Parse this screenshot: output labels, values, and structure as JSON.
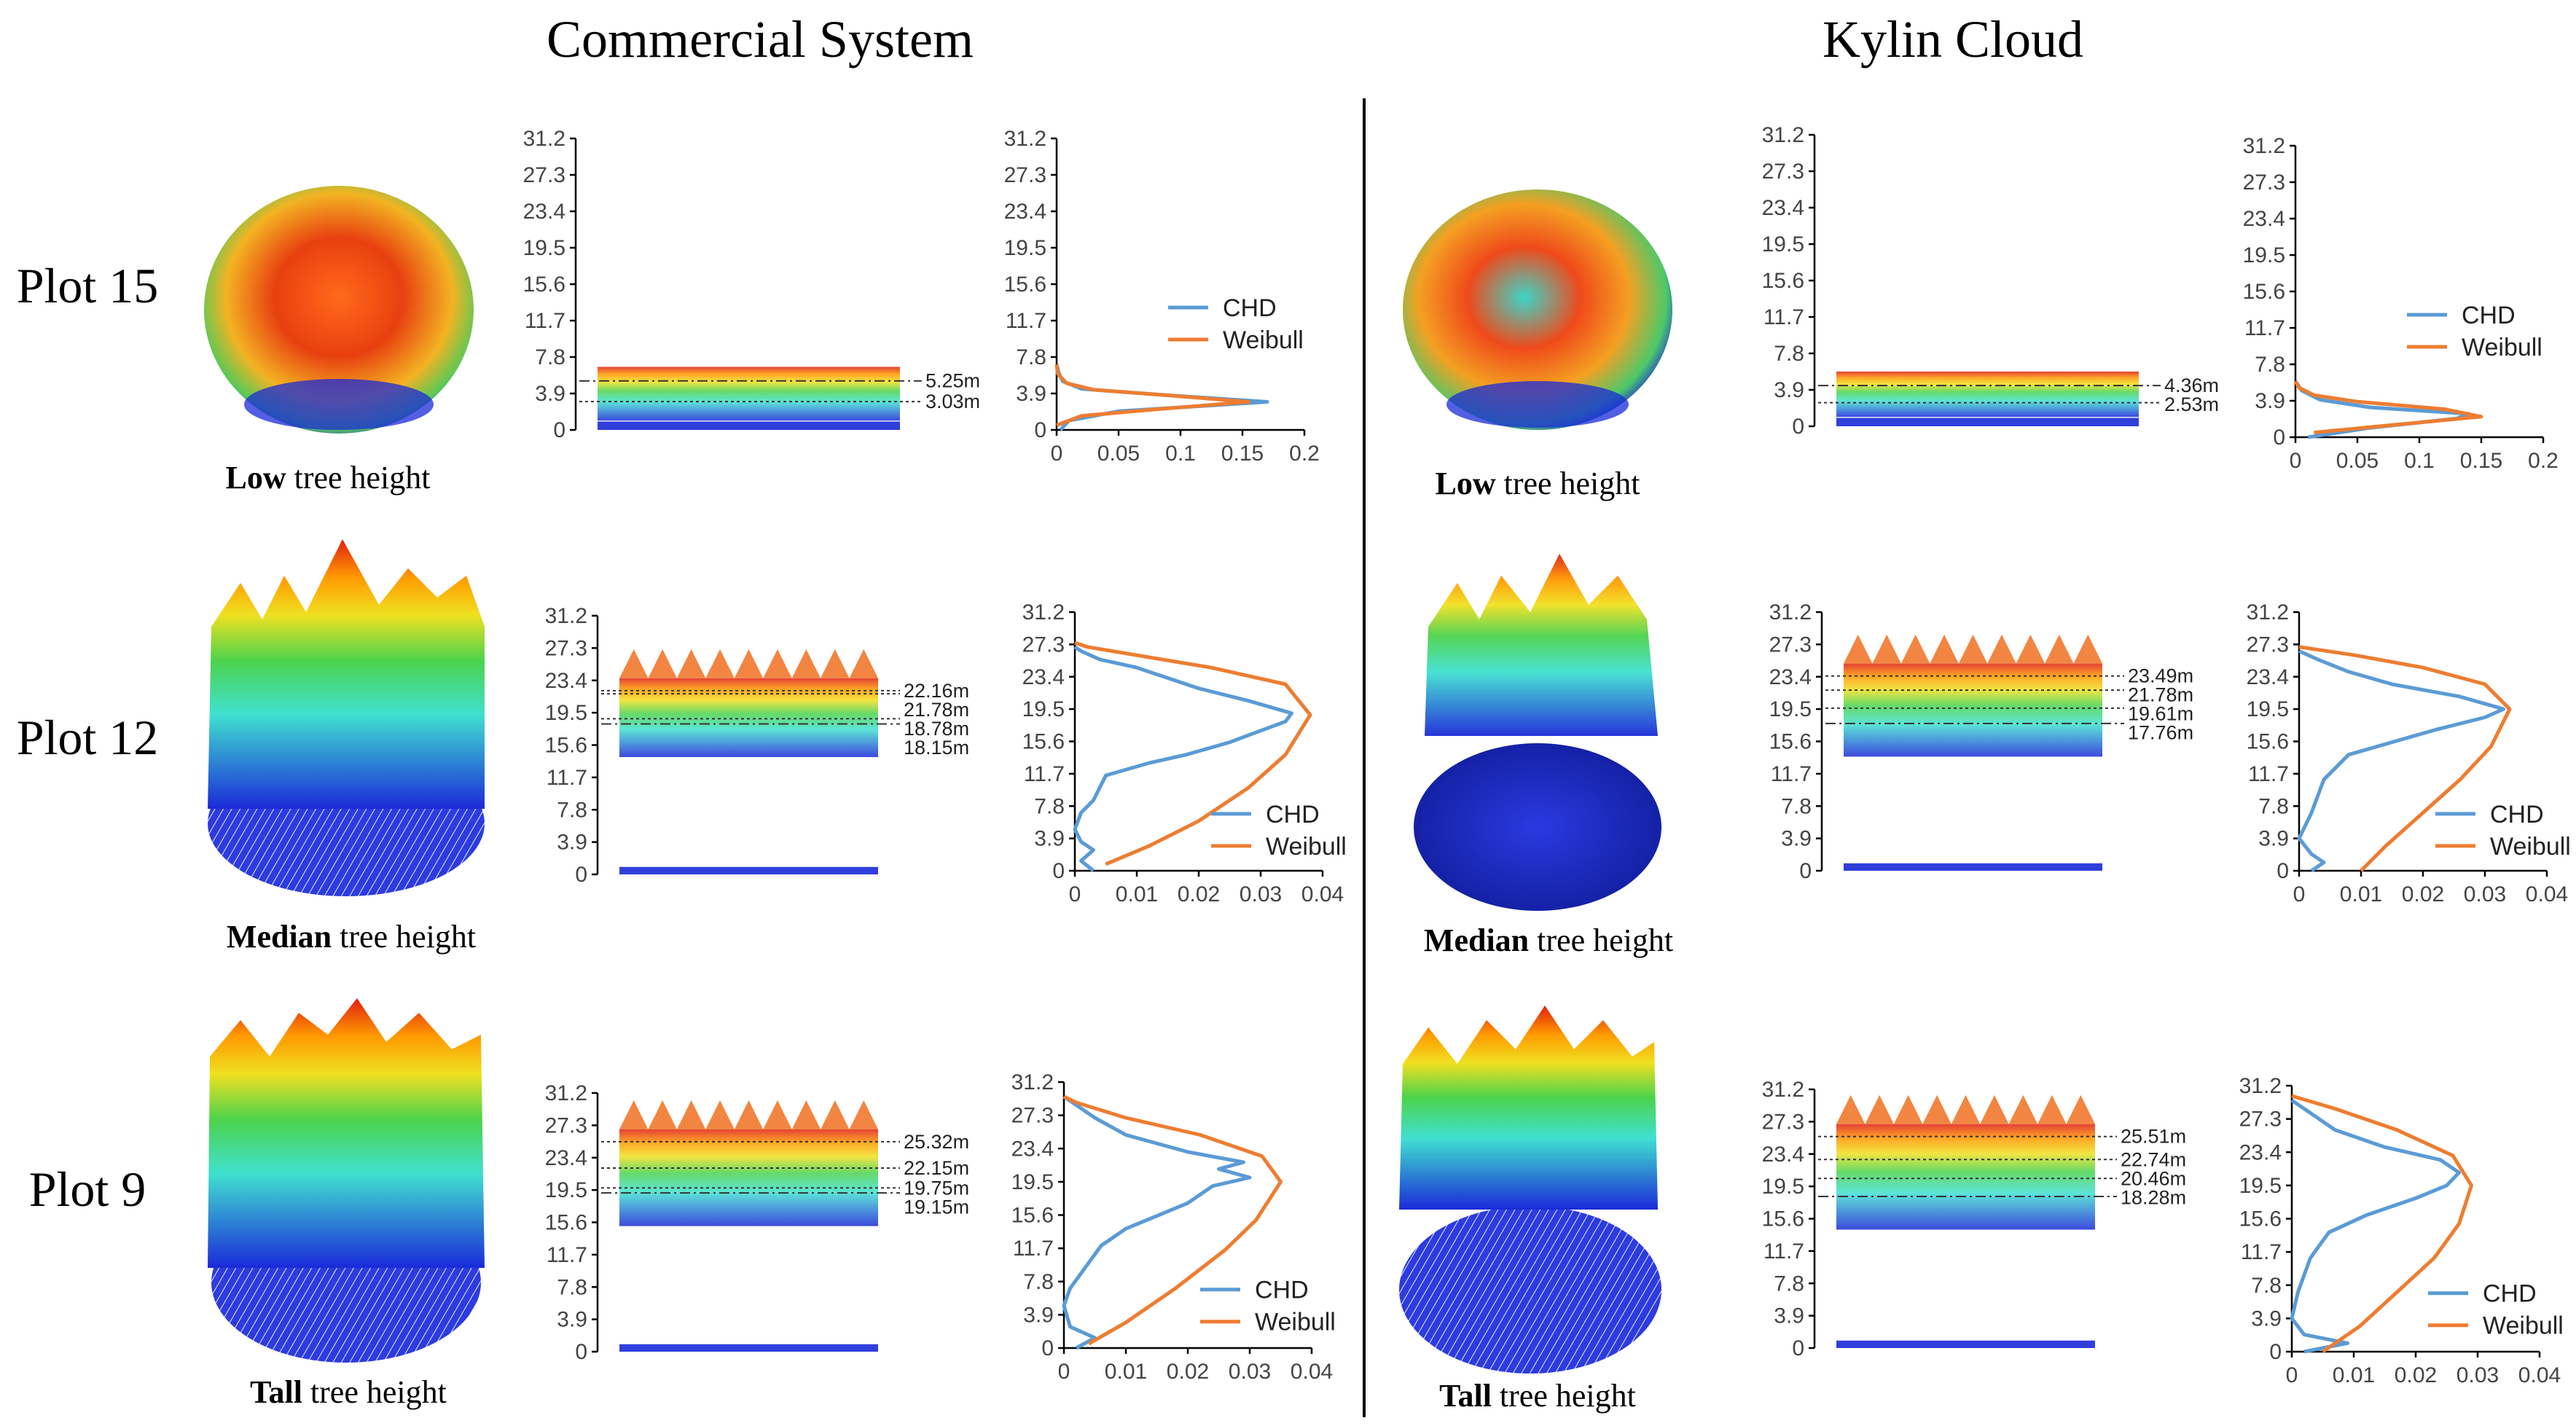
{
  "titles": {
    "left": "Commercial System",
    "right": "Kylin Cloud"
  },
  "plots": [
    {
      "label": "Plot 15",
      "class": "Low",
      "caption_rest": "tree height"
    },
    {
      "label": "Plot 12",
      "class": "Median",
      "caption_rest": "tree height"
    },
    {
      "label": "Plot 9",
      "class": "Tall",
      "caption_rest": "tree height"
    }
  ],
  "legend": {
    "chd": "CHD",
    "weibull": "Weibull"
  },
  "colors": {
    "chd": "#5b9bd5",
    "weibull": "#ed7d31",
    "axis": "#000000",
    "divider": "#000000"
  },
  "chart_data": [
    {
      "id": "cs-p15-profile",
      "type": "scatter",
      "system": "Commercial System",
      "plot": "Plot 15",
      "ylim": [
        0,
        31.2
      ],
      "yticks": [
        "31.2",
        "27.3",
        "23.4",
        "19.5",
        "15.6",
        "11.7",
        "7.8",
        "3.9",
        "0"
      ],
      "reference_heights": [
        {
          "value": 5.25,
          "label": "5.25m",
          "style": "dash-dot"
        },
        {
          "value": 3.03,
          "label": "3.03m",
          "style": "dotted"
        }
      ]
    },
    {
      "id": "cs-p15-dist",
      "type": "line",
      "system": "Commercial System",
      "plot": "Plot 15",
      "xlim": [
        0,
        0.2
      ],
      "xticks": [
        "0",
        "0.05",
        "0.1",
        "0.15",
        "0.2"
      ],
      "ylim": [
        0,
        31.2
      ],
      "yticks": [
        "31.2",
        "27.3",
        "23.4",
        "19.5",
        "15.6",
        "11.7",
        "7.8",
        "3.9",
        "0"
      ],
      "legend_position": "right",
      "series": [
        {
          "name": "CHD",
          "points": [
            [
              0.003,
              0
            ],
            [
              0.01,
              1.0
            ],
            [
              0.05,
              2.0
            ],
            [
              0.17,
              3.0
            ],
            [
              0.08,
              3.8
            ],
            [
              0.02,
              4.4
            ],
            [
              0.005,
              5.2
            ],
            [
              0.002,
              6.0
            ],
            [
              0,
              7
            ]
          ]
        },
        {
          "name": "Weibull",
          "points": [
            [
              0,
              0.5
            ],
            [
              0.02,
              1.5
            ],
            [
              0.08,
              2.2
            ],
            [
              0.155,
              3.0
            ],
            [
              0.09,
              3.7
            ],
            [
              0.03,
              4.3
            ],
            [
              0.008,
              5.0
            ],
            [
              0.001,
              6.0
            ],
            [
              0,
              7
            ]
          ]
        }
      ]
    },
    {
      "id": "cs-p12-profile",
      "type": "scatter",
      "system": "Commercial System",
      "plot": "Plot 12",
      "ylim": [
        0,
        31.2
      ],
      "yticks": [
        "31.2",
        "27.3",
        "23.4",
        "19.5",
        "15.6",
        "11.7",
        "7.8",
        "3.9",
        "0"
      ],
      "reference_heights": [
        {
          "value": 21.78,
          "label": "21.78m",
          "style": "dotted"
        },
        {
          "value": 22.16,
          "label": "22.16m",
          "style": "dotted"
        },
        {
          "value": 18.78,
          "label": "18.78m",
          "style": "dotted"
        },
        {
          "value": 18.15,
          "label": "18.15m",
          "style": "dash-dot"
        }
      ]
    },
    {
      "id": "cs-p12-dist",
      "type": "line",
      "system": "Commercial System",
      "plot": "Plot 12",
      "xlim": [
        0,
        0.04
      ],
      "xticks": [
        "0",
        "0.01",
        "0.02",
        "0.03",
        "0.04"
      ],
      "ylim": [
        0,
        31.2
      ],
      "yticks": [
        "31.2",
        "27.3",
        "23.4",
        "19.5",
        "15.6",
        "11.7",
        "7.8",
        "3.9",
        "0"
      ],
      "legend_position": "bottom-right",
      "series": [
        {
          "name": "CHD",
          "points": [
            [
              0.003,
              0
            ],
            [
              0.001,
              1.2
            ],
            [
              0.003,
              2.5
            ],
            [
              0.001,
              3.5
            ],
            [
              0,
              5
            ],
            [
              0.001,
              7
            ],
            [
              0.003,
              8.5
            ],
            [
              0.005,
              11.5
            ],
            [
              0.012,
              13
            ],
            [
              0.018,
              14
            ],
            [
              0.025,
              15.5
            ],
            [
              0.034,
              18
            ],
            [
              0.035,
              19
            ],
            [
              0.028,
              20.5
            ],
            [
              0.02,
              22
            ],
            [
              0.01,
              24.5
            ],
            [
              0.004,
              25.5
            ],
            [
              0.001,
              26.5
            ],
            [
              0,
              27
            ]
          ]
        },
        {
          "name": "Weibull",
          "points": [
            [
              0.005,
              0.8
            ],
            [
              0.012,
              3
            ],
            [
              0.02,
              6
            ],
            [
              0.028,
              10
            ],
            [
              0.034,
              14
            ],
            [
              0.038,
              18.8
            ],
            [
              0.034,
              22.5
            ],
            [
              0.022,
              24.5
            ],
            [
              0.01,
              26
            ],
            [
              0.002,
              27
            ],
            [
              0,
              27.5
            ]
          ]
        }
      ]
    },
    {
      "id": "cs-p9-profile",
      "type": "scatter",
      "system": "Commercial System",
      "plot": "Plot 9",
      "ylim": [
        0,
        31.2
      ],
      "yticks": [
        "31.2",
        "27.3",
        "23.4",
        "19.5",
        "15.6",
        "11.7",
        "7.8",
        "3.9",
        "0"
      ],
      "reference_heights": [
        {
          "value": 25.32,
          "label": "25.32m",
          "style": "dotted"
        },
        {
          "value": 22.15,
          "label": "22.15m",
          "style": "dotted"
        },
        {
          "value": 19.75,
          "label": "19.75m",
          "style": "dotted"
        },
        {
          "value": 19.15,
          "label": "19.15m",
          "style": "dash-dot"
        }
      ]
    },
    {
      "id": "cs-p9-dist",
      "type": "line",
      "system": "Commercial System",
      "plot": "Plot 9",
      "xlim": [
        0,
        0.04
      ],
      "xticks": [
        "0",
        "0.01",
        "0.02",
        "0.03",
        "0.04"
      ],
      "ylim": [
        0,
        31.2
      ],
      "yticks": [
        "31.2",
        "27.3",
        "23.4",
        "19.5",
        "15.6",
        "11.7",
        "7.8",
        "3.9",
        "0"
      ],
      "legend_position": "bottom-right",
      "series": [
        {
          "name": "CHD",
          "points": [
            [
              0.002,
              0
            ],
            [
              0.005,
              1.2
            ],
            [
              0.001,
              2.5
            ],
            [
              0,
              5
            ],
            [
              0.001,
              7
            ],
            [
              0.003,
              9
            ],
            [
              0.006,
              12
            ],
            [
              0.01,
              14
            ],
            [
              0.015,
              15.5
            ],
            [
              0.02,
              17
            ],
            [
              0.024,
              19
            ],
            [
              0.03,
              20
            ],
            [
              0.025,
              21
            ],
            [
              0.029,
              21.8
            ],
            [
              0.02,
              23
            ],
            [
              0.01,
              25
            ],
            [
              0.005,
              27
            ],
            [
              0.002,
              28.5
            ],
            [
              0,
              29.5
            ]
          ]
        },
        {
          "name": "Weibull",
          "points": [
            [
              0.004,
              0.5
            ],
            [
              0.01,
              3
            ],
            [
              0.018,
              7
            ],
            [
              0.026,
              11.5
            ],
            [
              0.031,
              15
            ],
            [
              0.035,
              19.5
            ],
            [
              0.032,
              22.5
            ],
            [
              0.022,
              25
            ],
            [
              0.01,
              27
            ],
            [
              0.002,
              28.8
            ],
            [
              0,
              29.5
            ]
          ]
        }
      ]
    },
    {
      "id": "kc-p15-profile",
      "type": "scatter",
      "system": "Kylin Cloud",
      "plot": "Plot 15",
      "ylim": [
        0,
        31.2
      ],
      "yticks": [
        "31.2",
        "27.3",
        "23.4",
        "19.5",
        "15.6",
        "11.7",
        "7.8",
        "3.9",
        "0"
      ],
      "reference_heights": [
        {
          "value": 4.36,
          "label": "4.36m",
          "style": "dash-dot"
        },
        {
          "value": 2.53,
          "label": "2.53m",
          "style": "dotted"
        }
      ]
    },
    {
      "id": "kc-p15-dist",
      "type": "line",
      "system": "Kylin Cloud",
      "plot": "Plot 15",
      "xlim": [
        0,
        0.2
      ],
      "xticks": [
        "0",
        "0.05",
        "0.1",
        "0.15",
        "0.2"
      ],
      "ylim": [
        0,
        31.2
      ],
      "yticks": [
        "31.2",
        "27.3",
        "23.4",
        "19.5",
        "15.6",
        "11.7",
        "7.8",
        "3.9",
        "0"
      ],
      "legend_position": "right",
      "series": [
        {
          "name": "CHD",
          "points": [
            [
              0.01,
              0
            ],
            [
              0.06,
              1.0
            ],
            [
              0.13,
              2.0
            ],
            [
              0.14,
              2.5
            ],
            [
              0.06,
              3.2
            ],
            [
              0.02,
              4.0
            ],
            [
              0.005,
              5.0
            ],
            [
              0,
              6
            ]
          ]
        },
        {
          "name": "Weibull",
          "points": [
            [
              0.015,
              0.5
            ],
            [
              0.07,
              1.2
            ],
            [
              0.15,
              2.2
            ],
            [
              0.12,
              3.0
            ],
            [
              0.05,
              3.8
            ],
            [
              0.015,
              4.5
            ],
            [
              0.003,
              5.3
            ],
            [
              0,
              6
            ]
          ]
        }
      ]
    },
    {
      "id": "kc-p12-profile",
      "type": "scatter",
      "system": "Kylin Cloud",
      "plot": "Plot 12",
      "ylim": [
        0,
        31.2
      ],
      "yticks": [
        "31.2",
        "27.3",
        "23.4",
        "19.5",
        "15.6",
        "11.7",
        "7.8",
        "3.9",
        "0"
      ],
      "reference_heights": [
        {
          "value": 23.49,
          "label": "23.49m",
          "style": "dotted"
        },
        {
          "value": 21.78,
          "label": "21.78m",
          "style": "dotted"
        },
        {
          "value": 19.61,
          "label": "19.61m",
          "style": "dotted"
        },
        {
          "value": 17.76,
          "label": "17.76m",
          "style": "dash-dot"
        }
      ]
    },
    {
      "id": "kc-p12-dist",
      "type": "line",
      "system": "Kylin Cloud",
      "plot": "Plot 12",
      "xlim": [
        0,
        0.04
      ],
      "xticks": [
        "0",
        "0.01",
        "0.02",
        "0.03",
        "0.04"
      ],
      "ylim": [
        0,
        31.2
      ],
      "yticks": [
        "31.2",
        "27.3",
        "23.4",
        "19.5",
        "15.6",
        "11.7",
        "7.8",
        "3.9",
        "0"
      ],
      "legend_position": "bottom-right",
      "series": [
        {
          "name": "CHD",
          "points": [
            [
              0.002,
              0
            ],
            [
              0.004,
              1
            ],
            [
              0.002,
              2
            ],
            [
              0,
              3.9
            ],
            [
              0.002,
              7
            ],
            [
              0.004,
              11
            ],
            [
              0.008,
              14
            ],
            [
              0.015,
              15.5
            ],
            [
              0.022,
              17
            ],
            [
              0.03,
              18.5
            ],
            [
              0.033,
              19.5
            ],
            [
              0.026,
              21
            ],
            [
              0.015,
              22.5
            ],
            [
              0.008,
              24
            ],
            [
              0.003,
              25.5
            ],
            [
              0,
              26.5
            ]
          ]
        },
        {
          "name": "Weibull",
          "points": [
            [
              0.01,
              0
            ],
            [
              0.014,
              3
            ],
            [
              0.02,
              7
            ],
            [
              0.026,
              11
            ],
            [
              0.031,
              15
            ],
            [
              0.034,
              19.5
            ],
            [
              0.03,
              22.5
            ],
            [
              0.02,
              24.5
            ],
            [
              0.009,
              26
            ],
            [
              0,
              27
            ]
          ]
        }
      ]
    },
    {
      "id": "kc-p9-profile",
      "type": "scatter",
      "system": "Kylin Cloud",
      "plot": "Plot 9",
      "ylim": [
        0,
        31.2
      ],
      "yticks": [
        "31.2",
        "27.3",
        "23.4",
        "19.5",
        "15.6",
        "11.7",
        "7.8",
        "3.9",
        "0"
      ],
      "reference_heights": [
        {
          "value": 25.51,
          "label": "25.51m",
          "style": "dotted"
        },
        {
          "value": 22.74,
          "label": "22.74m",
          "style": "dotted"
        },
        {
          "value": 20.46,
          "label": "20.46m",
          "style": "dotted"
        },
        {
          "value": 18.28,
          "label": "18.28m",
          "style": "dash-dot"
        }
      ]
    },
    {
      "id": "kc-p9-dist",
      "type": "line",
      "system": "Kylin Cloud",
      "plot": "Plot 9",
      "xlim": [
        0,
        0.04
      ],
      "xticks": [
        "0",
        "0.01",
        "0.02",
        "0.03",
        "0.04"
      ],
      "ylim": [
        0,
        31.2
      ],
      "yticks": [
        "31.2",
        "27.3",
        "23.4",
        "19.5",
        "15.6",
        "11.7",
        "7.8",
        "3.9",
        "0"
      ],
      "legend_position": "bottom-right",
      "series": [
        {
          "name": "CHD",
          "points": [
            [
              0.002,
              0
            ],
            [
              0.009,
              1
            ],
            [
              0.002,
              2
            ],
            [
              0,
              3.9
            ],
            [
              0.001,
              7
            ],
            [
              0.003,
              11
            ],
            [
              0.006,
              14
            ],
            [
              0.012,
              16
            ],
            [
              0.02,
              18
            ],
            [
              0.025,
              19.5
            ],
            [
              0.027,
              21
            ],
            [
              0.024,
              22.5
            ],
            [
              0.015,
              24
            ],
            [
              0.007,
              26
            ],
            [
              0.003,
              28
            ],
            [
              0,
              29.5
            ]
          ]
        },
        {
          "name": "Weibull",
          "points": [
            [
              0.005,
              0
            ],
            [
              0.011,
              3
            ],
            [
              0.017,
              7
            ],
            [
              0.023,
              11
            ],
            [
              0.027,
              15
            ],
            [
              0.029,
              19.5
            ],
            [
              0.026,
              23
            ],
            [
              0.017,
              26
            ],
            [
              0.007,
              28.5
            ],
            [
              0,
              30
            ]
          ]
        }
      ]
    }
  ]
}
